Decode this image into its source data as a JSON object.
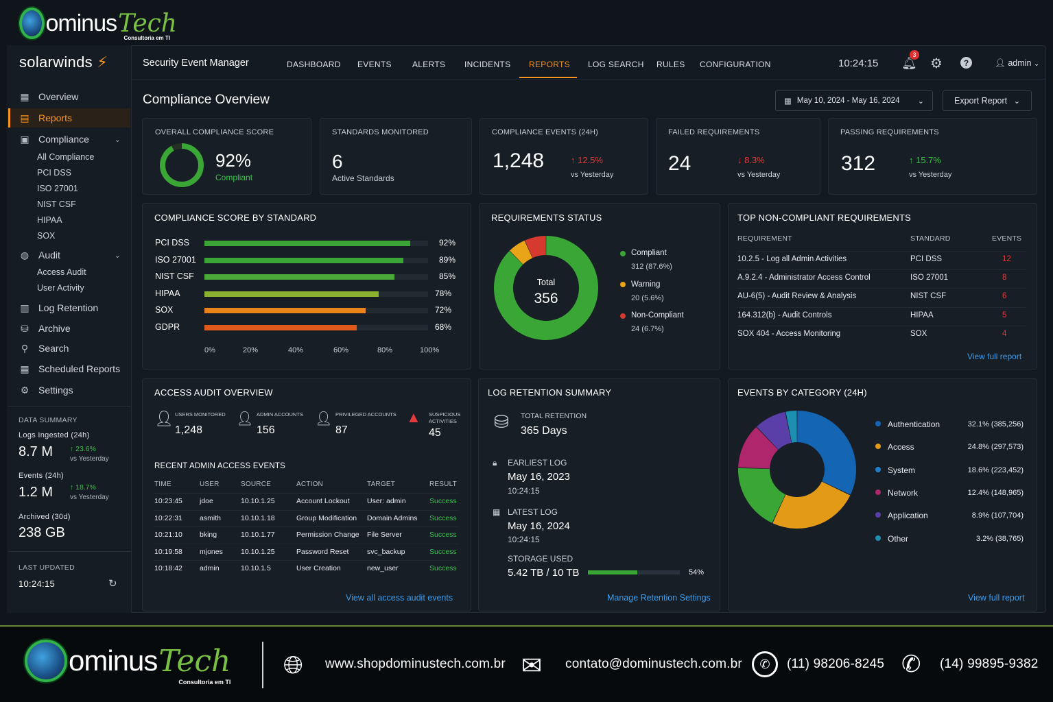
{
  "brand": {
    "name": "ominus",
    "tech": "Tech",
    "tagline": "Consultoria em TI"
  },
  "app": {
    "vendor": "solarwinds",
    "title": "Security Event Manager"
  },
  "topnav": {
    "items": [
      "DASHBOARD",
      "EVENTS",
      "ALERTS",
      "INCIDENTS",
      "REPORTS",
      "LOG SEARCH",
      "RULES",
      "CONFIGURATION"
    ],
    "active": "REPORTS",
    "clock": "10:24:15",
    "notifications": "3",
    "user": "admin"
  },
  "sidebar": {
    "items": [
      {
        "label": "Overview",
        "icon": "grid-icon"
      },
      {
        "label": "Reports",
        "icon": "report-icon",
        "active": true
      },
      {
        "label": "Compliance",
        "icon": "monitor-icon"
      },
      {
        "label": "Audit",
        "icon": "audit-icon"
      },
      {
        "label": "Log Retention",
        "icon": "log-icon"
      },
      {
        "label": "Archive",
        "icon": "archive-icon"
      },
      {
        "label": "Search",
        "icon": "search-icon"
      },
      {
        "label": "Scheduled Reports",
        "icon": "calendar-icon"
      },
      {
        "label": "Settings",
        "icon": "gear-icon"
      }
    ],
    "compliance_sub": [
      "All Compliance",
      "PCI DSS",
      "ISO 27001",
      "NIST CSF",
      "HIPAA",
      "SOX"
    ],
    "audit_sub": [
      "Access Audit",
      "User Activity"
    ],
    "data_summary": {
      "title": "DATA SUMMARY",
      "logs_label": "Logs Ingested (24h)",
      "logs_value": "8.7 M",
      "logs_delta": "↑ 23.6%",
      "logs_vs": "vs Yesterday",
      "events_label": "Events (24h)",
      "events_value": "1.2 M",
      "events_delta": "↑ 18.7%",
      "events_vs": "vs Yesterday",
      "archived_label": "Archived (30d)",
      "archived_value": "238 GB"
    },
    "last_updated_label": "LAST UPDATED",
    "last_updated_value": "10:24:15"
  },
  "page": {
    "title": "Compliance Overview",
    "date_range": "May 10, 2024 - May 16, 2024",
    "export_label": "Export Report"
  },
  "kpis": {
    "score": {
      "label": "OVERALL COMPLIANCE SCORE",
      "value": "92%",
      "sub": "Compliant",
      "fraction": 0.92
    },
    "standards": {
      "label": "STANDARDS MONITORED",
      "value": "6",
      "sub": "Active Standards"
    },
    "events": {
      "label": "COMPLIANCE EVENTS (24H)",
      "value": "1,248",
      "delta": "↑ 12.5%",
      "vs": "vs Yesterday"
    },
    "failed": {
      "label": "FAILED REQUIREMENTS",
      "value": "24",
      "delta": "↓ 8.3%",
      "vs": "vs Yesterday"
    },
    "passing": {
      "label": "PASSING REQUIREMENTS",
      "value": "312",
      "delta": "↑ 15.7%",
      "vs": "vs Yesterday"
    }
  },
  "score_by_standard": {
    "title": "COMPLIANCE SCORE BY STANDARD",
    "ticks": [
      "0%",
      "20%",
      "40%",
      "60%",
      "80%",
      "100%"
    ]
  },
  "req_status": {
    "title": "REQUIREMENTS STATUS",
    "total_label": "Total",
    "total": "356",
    "legend": [
      {
        "label": "Compliant",
        "value": "312 (87.6%)",
        "color": "#3aa635"
      },
      {
        "label": "Warning",
        "value": "20 (5.6%)",
        "color": "#e8a317"
      },
      {
        "label": "Non-Compliant",
        "value": "24 (6.7%)",
        "color": "#d63a2f"
      }
    ]
  },
  "top_noncompliant": {
    "title": "TOP NON-COMPLIANT REQUIREMENTS",
    "headers": [
      "REQUIREMENT",
      "STANDARD",
      "EVENTS"
    ],
    "rows": [
      [
        "10.2.5 - Log all Admin Activities",
        "PCI DSS",
        "12"
      ],
      [
        "A.9.2.4 - Administrator Access Control",
        "ISO 27001",
        "8"
      ],
      [
        "AU-6(5) - Audit Review & Analysis",
        "NIST CSF",
        "6"
      ],
      [
        "164.312(b) - Audit Controls",
        "HIPAA",
        "5"
      ],
      [
        "SOX 404 - Access Monitoring",
        "SOX",
        "4"
      ]
    ],
    "link": "View full report"
  },
  "access_audit": {
    "title": "ACCESS AUDIT OVERVIEW",
    "stats": [
      {
        "label": "USERS MONITORED",
        "value": "1,248"
      },
      {
        "label": "ADMIN ACCOUNTS",
        "value": "156"
      },
      {
        "label": "PRIVILEGED ACCOUNTS",
        "value": "87"
      },
      {
        "label": "SUSPICIOUS ACTIVITIES",
        "label2": "ACTIVITIES",
        "label1": "SUSPICIOUS",
        "value": "45"
      }
    ],
    "recent_title": "RECENT ADMIN ACCESS EVENTS",
    "headers": [
      "TIME",
      "USER",
      "SOURCE",
      "ACTION",
      "TARGET",
      "RESULT"
    ],
    "rows": [
      [
        "10:23:45",
        "jdoe",
        "10.10.1.25",
        "Account Lockout",
        "User: admin",
        "Success"
      ],
      [
        "10:22:31",
        "asmith",
        "10.10.1.18",
        "Group Modification",
        "Domain Admins",
        "Success"
      ],
      [
        "10:21:10",
        "bking",
        "10.10.1.77",
        "Permission Change",
        "File Server",
        "Success"
      ],
      [
        "10:19:58",
        "mjones",
        "10.10.1.25",
        "Password Reset",
        "svc_backup",
        "Success"
      ],
      [
        "10:18:42",
        "admin",
        "10.10.1.5",
        "User Creation",
        "new_user",
        "Success"
      ]
    ],
    "link": "View all access audit events"
  },
  "log_retention": {
    "title": "LOG RETENTION SUMMARY",
    "total_label": "TOTAL RETENTION",
    "total_value": "365 Days",
    "earliest_label": "EARLIEST LOG",
    "earliest_date": "May 16, 2023",
    "earliest_time": "10:24:15",
    "latest_label": "LATEST LOG",
    "latest_date": "May 16, 2024",
    "latest_time": "10:24:15",
    "storage_label": "STORAGE USED",
    "storage_value": "5.42 TB / 10 TB",
    "storage_pct": "54%",
    "storage_fraction": 0.54,
    "link": "Manage Retention Settings"
  },
  "events_by_category": {
    "title": "EVENTS BY CATEGORY (24H)",
    "link": "View full report"
  },
  "footer": {
    "website": "www.shopdominustech.com.br",
    "email": "contato@dominustech.com.br",
    "whatsapp": "(11) 98206-8245",
    "phone": "(14) 99895-9382"
  },
  "chart_data": [
    {
      "type": "bar",
      "title": "COMPLIANCE SCORE BY STANDARD",
      "categories": [
        "PCI DSS",
        "ISO 27001",
        "NIST CSF",
        "HIPAA",
        "SOX",
        "GDPR"
      ],
      "values": [
        92,
        89,
        85,
        78,
        72,
        68
      ],
      "labels": [
        "92%",
        "89%",
        "85%",
        "78%",
        "72%",
        "68%"
      ],
      "colors": [
        "#3aa635",
        "#3aa635",
        "#4aa938",
        "#8ab22e",
        "#e8841a",
        "#e05a1c"
      ],
      "xlim": [
        0,
        100
      ],
      "orientation": "horizontal"
    },
    {
      "type": "pie",
      "title": "REQUIREMENTS STATUS",
      "categories": [
        "Compliant",
        "Warning",
        "Non-Compliant"
      ],
      "values": [
        312,
        20,
        24
      ],
      "colors": [
        "#3aa635",
        "#e8a317",
        "#d63a2f"
      ]
    },
    {
      "type": "pie",
      "title": "EVENTS BY CATEGORY (24H)",
      "categories": [
        "Authentication",
        "Access",
        "System",
        "Network",
        "Application",
        "Other"
      ],
      "values": [
        32.1,
        24.8,
        18.6,
        12.4,
        8.9,
        3.2
      ],
      "labels": [
        "32.1% (385,256)",
        "24.8% (297,573)",
        "18.6% (223,452)",
        "12.4% (148,965)",
        "8.9% (107,704)",
        "3.2% (38,765)"
      ],
      "colors": [
        "#1565b5",
        "#e39a17",
        "#3aa635",
        "#b0266d",
        "#5a3fa8",
        "#1d8fb0"
      ],
      "legend_colors": [
        "#1565b5",
        "#e39a17",
        "#1f7fc9",
        "#b0266d",
        "#5a3fa8",
        "#1d8fb0"
      ]
    }
  ]
}
